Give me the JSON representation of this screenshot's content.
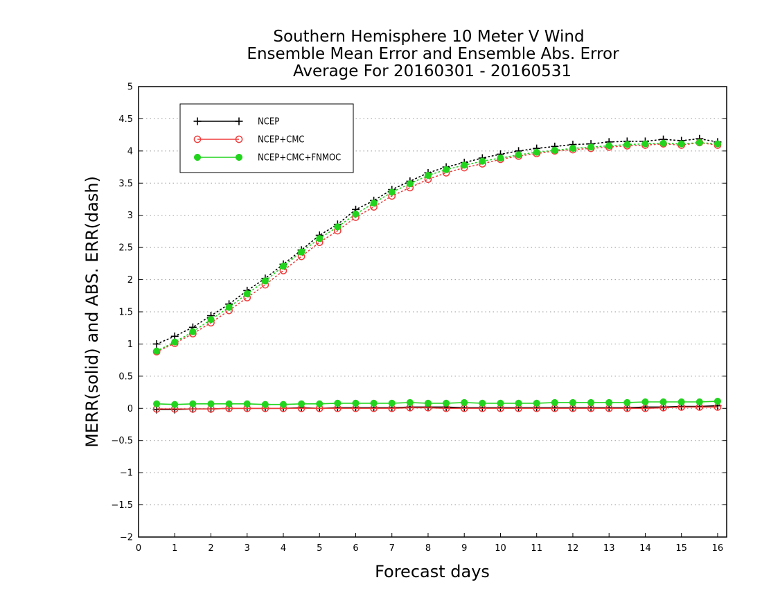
{
  "chart_data": {
    "type": "line",
    "title": [
      "Southern Hemisphere 10 Meter V Wind",
      "Ensemble Mean Error and Ensemble Abs. Error",
      "Average For 20160301 - 20160531"
    ],
    "xlabel": "Forecast days",
    "ylabel": "MERR(solid) and ABS. ERR(dash)",
    "xlim": [
      0,
      16.25
    ],
    "ylim": [
      -2,
      5
    ],
    "x_ticks": [
      0,
      1,
      2,
      3,
      4,
      5,
      6,
      7,
      8,
      9,
      10,
      11,
      12,
      13,
      14,
      15,
      16
    ],
    "x_tick_labels": [
      "0",
      "1",
      "2",
      "3",
      "4",
      "5",
      "6",
      "7",
      "8",
      "9",
      "10",
      "11",
      "12",
      "13",
      "14",
      "15",
      "16"
    ],
    "y_ticks": [
      -2,
      -1.5,
      -1,
      -0.5,
      0,
      0.5,
      1,
      1.5,
      2,
      2.5,
      3,
      3.5,
      4,
      4.5,
      5
    ],
    "y_tick_labels": [
      "−2",
      "−1.5",
      "−1",
      "−0.5",
      "0",
      "0.5",
      "1",
      "1.5",
      "2",
      "2.5",
      "3",
      "3.5",
      "4",
      "4.5",
      "5"
    ],
    "grid": "horizontal dotted",
    "legend_position": "top-left",
    "x": [
      0.5,
      1,
      1.5,
      2,
      2.5,
      3,
      3.5,
      4,
      4.5,
      5,
      5.5,
      6,
      6.5,
      7,
      7.5,
      8,
      8.5,
      9,
      9.5,
      10,
      10.5,
      11,
      11.5,
      12,
      12.5,
      13,
      13.5,
      14,
      14.5,
      15,
      15.5,
      16
    ],
    "series": [
      {
        "name": "NCEP",
        "color": "#000000",
        "marker": "plus",
        "merr": [
          -0.02,
          -0.02,
          -0.01,
          -0.01,
          0.0,
          0.0,
          0.0,
          0.0,
          0.01,
          0.0,
          0.01,
          0.01,
          0.01,
          0.01,
          0.02,
          0.02,
          0.02,
          0.01,
          0.01,
          0.01,
          0.01,
          0.01,
          0.01,
          0.01,
          0.01,
          0.01,
          0.01,
          0.02,
          0.02,
          0.03,
          0.03,
          0.04
        ],
        "abs_err": [
          1.0,
          1.12,
          1.26,
          1.44,
          1.62,
          1.83,
          2.02,
          2.24,
          2.46,
          2.69,
          2.86,
          3.09,
          3.23,
          3.4,
          3.53,
          3.66,
          3.75,
          3.82,
          3.89,
          3.95,
          4.0,
          4.04,
          4.07,
          4.1,
          4.11,
          4.14,
          4.15,
          4.15,
          4.18,
          4.16,
          4.19,
          4.14
        ]
      },
      {
        "name": "NCEP+CMC",
        "color": "#f03c3c",
        "marker": "open-circle",
        "merr": [
          -0.01,
          -0.01,
          -0.01,
          -0.01,
          0.0,
          0.0,
          0.0,
          0.0,
          0.0,
          0.0,
          0.0,
          0.0,
          0.0,
          0.0,
          0.01,
          0.01,
          0.0,
          0.0,
          0.0,
          0.0,
          0.0,
          0.0,
          0.0,
          0.0,
          0.0,
          0.0,
          0.0,
          0.0,
          0.01,
          0.02,
          0.02,
          0.02
        ],
        "abs_err": [
          0.88,
          1.01,
          1.16,
          1.33,
          1.52,
          1.72,
          1.92,
          2.14,
          2.36,
          2.58,
          2.76,
          2.97,
          3.13,
          3.3,
          3.43,
          3.56,
          3.66,
          3.74,
          3.8,
          3.87,
          3.92,
          3.96,
          4.0,
          4.02,
          4.04,
          4.06,
          4.08,
          4.09,
          4.11,
          4.09,
          4.13,
          4.09
        ]
      },
      {
        "name": "NCEP+CMC+FNMOC",
        "color": "#22d41e",
        "marker": "filled-circle",
        "merr": [
          0.07,
          0.06,
          0.07,
          0.07,
          0.07,
          0.07,
          0.06,
          0.06,
          0.07,
          0.07,
          0.08,
          0.08,
          0.08,
          0.08,
          0.09,
          0.08,
          0.08,
          0.09,
          0.08,
          0.08,
          0.08,
          0.08,
          0.09,
          0.09,
          0.09,
          0.09,
          0.09,
          0.1,
          0.1,
          0.1,
          0.1,
          0.11
        ],
        "abs_err": [
          0.89,
          1.03,
          1.19,
          1.38,
          1.57,
          1.78,
          1.98,
          2.21,
          2.43,
          2.64,
          2.82,
          3.02,
          3.19,
          3.36,
          3.49,
          3.62,
          3.71,
          3.78,
          3.84,
          3.89,
          3.94,
          3.98,
          4.01,
          4.04,
          4.06,
          4.08,
          4.1,
          4.11,
          4.12,
          4.11,
          4.13,
          4.11
        ]
      }
    ]
  }
}
